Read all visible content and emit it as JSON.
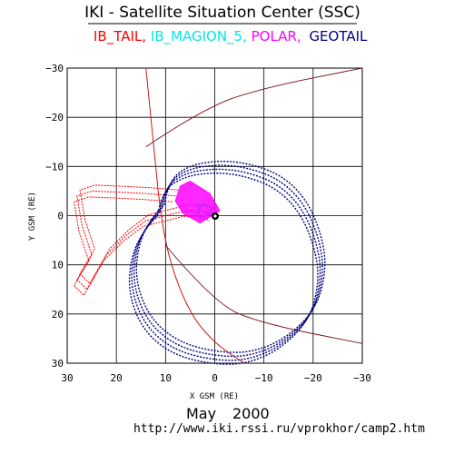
{
  "header": {
    "title": "IKI - Satellite Situation Center (SSC)",
    "legend": [
      {
        "text": "IB_TAIL,",
        "color": "#ff0000"
      },
      {
        "text": "IB_MAGION_5,",
        "color": "#00e5ee"
      },
      {
        "text": "POLAR,",
        "color": "#ff00ff"
      },
      {
        "text": "GEOTAIL",
        "color": "#000080"
      }
    ]
  },
  "footer": {
    "date_month": "May",
    "date_year": "2000",
    "url": "http://www.iki.rssi.ru/vprokhor/camp2.htm"
  },
  "chart_data": {
    "type": "scatter",
    "title": "IKI - Satellite Situation Center (SSC)",
    "xlabel": "X GSM (RE)",
    "ylabel": "Y GSM (RE)",
    "xlim": [
      30,
      -30
    ],
    "ylim": [
      -30,
      30
    ],
    "x_ticks": [
      "30",
      "20",
      "10",
      "0",
      "−10",
      "−20",
      "−30"
    ],
    "y_ticks": [
      "−30",
      "−20",
      "−10",
      "0",
      "10",
      "20",
      "30"
    ],
    "grid": true,
    "series": [
      {
        "name": "IB_TAIL",
        "color": "#ff0000",
        "points": [
          [
            8,
            -4
          ],
          [
            14,
            -4.5
          ],
          [
            20,
            -4.8
          ],
          [
            25,
            -5
          ],
          [
            28,
            -4
          ],
          [
            27,
            2
          ],
          [
            25,
            8
          ],
          [
            28,
            13
          ],
          [
            26,
            15
          ],
          [
            22,
            8
          ],
          [
            18,
            4
          ],
          [
            14,
            1
          ],
          [
            10,
            0
          ],
          [
            6,
            -1
          ],
          [
            3,
            -1
          ],
          [
            1,
            -0.5
          ],
          [
            0.5,
            0
          ]
        ]
      },
      {
        "name": "IB_MAGION_5",
        "color": "#00e5ee",
        "points": [
          [
            3.5,
            -2
          ],
          [
            2.5,
            -2.3
          ],
          [
            1.5,
            -2
          ],
          [
            0.5,
            -1.5
          ],
          [
            1,
            -0.5
          ],
          [
            2,
            0
          ],
          [
            3,
            0.5
          ],
          [
            3.6,
            -0.5
          ],
          [
            3,
            -1.6
          ]
        ]
      },
      {
        "name": "POLAR",
        "color": "#ff00ff",
        "points": [
          [
            7,
            -6
          ],
          [
            5,
            -7
          ],
          [
            1,
            -4.5
          ],
          [
            -1,
            -1
          ],
          [
            3,
            1.5
          ],
          [
            6.5,
            -0.5
          ],
          [
            8,
            -3
          ],
          [
            7,
            -6
          ]
        ]
      },
      {
        "name": "GEOTAIL",
        "color": "#000080",
        "points": [
          [
            11,
            -1
          ],
          [
            10,
            -6
          ],
          [
            6,
            -9
          ],
          [
            0,
            -10
          ],
          [
            -6,
            -9.5
          ],
          [
            -13,
            -7
          ],
          [
            -18,
            -2
          ],
          [
            -21,
            5
          ],
          [
            -22,
            12
          ],
          [
            -20,
            20
          ],
          [
            -14,
            26
          ],
          [
            -7,
            29
          ],
          [
            0,
            29
          ],
          [
            8,
            27
          ],
          [
            14,
            22
          ],
          [
            17,
            14
          ],
          [
            16,
            6
          ],
          [
            13,
            1
          ],
          [
            11,
            -1
          ]
        ]
      }
    ],
    "bow_shock": {
      "color": "#cc0000",
      "points": [
        [
          14,
          -30
        ],
        [
          13,
          -20
        ],
        [
          12,
          -10
        ],
        [
          11,
          0
        ],
        [
          9,
          10
        ],
        [
          5,
          20
        ],
        [
          0,
          26
        ],
        [
          -6,
          30
        ]
      ]
    },
    "magnetopause": {
      "color": "#7a0a1a",
      "points": [
        [
          14,
          -14
        ],
        [
          2,
          -22
        ],
        [
          -10,
          -26
        ],
        [
          -30,
          -30
        ]
      ]
    },
    "magnetopause_south": {
      "color": "#7a0a1a",
      "points": [
        [
          10,
          6
        ],
        [
          0,
          18
        ],
        [
          -10,
          22
        ],
        [
          -30,
          26
        ]
      ]
    }
  }
}
